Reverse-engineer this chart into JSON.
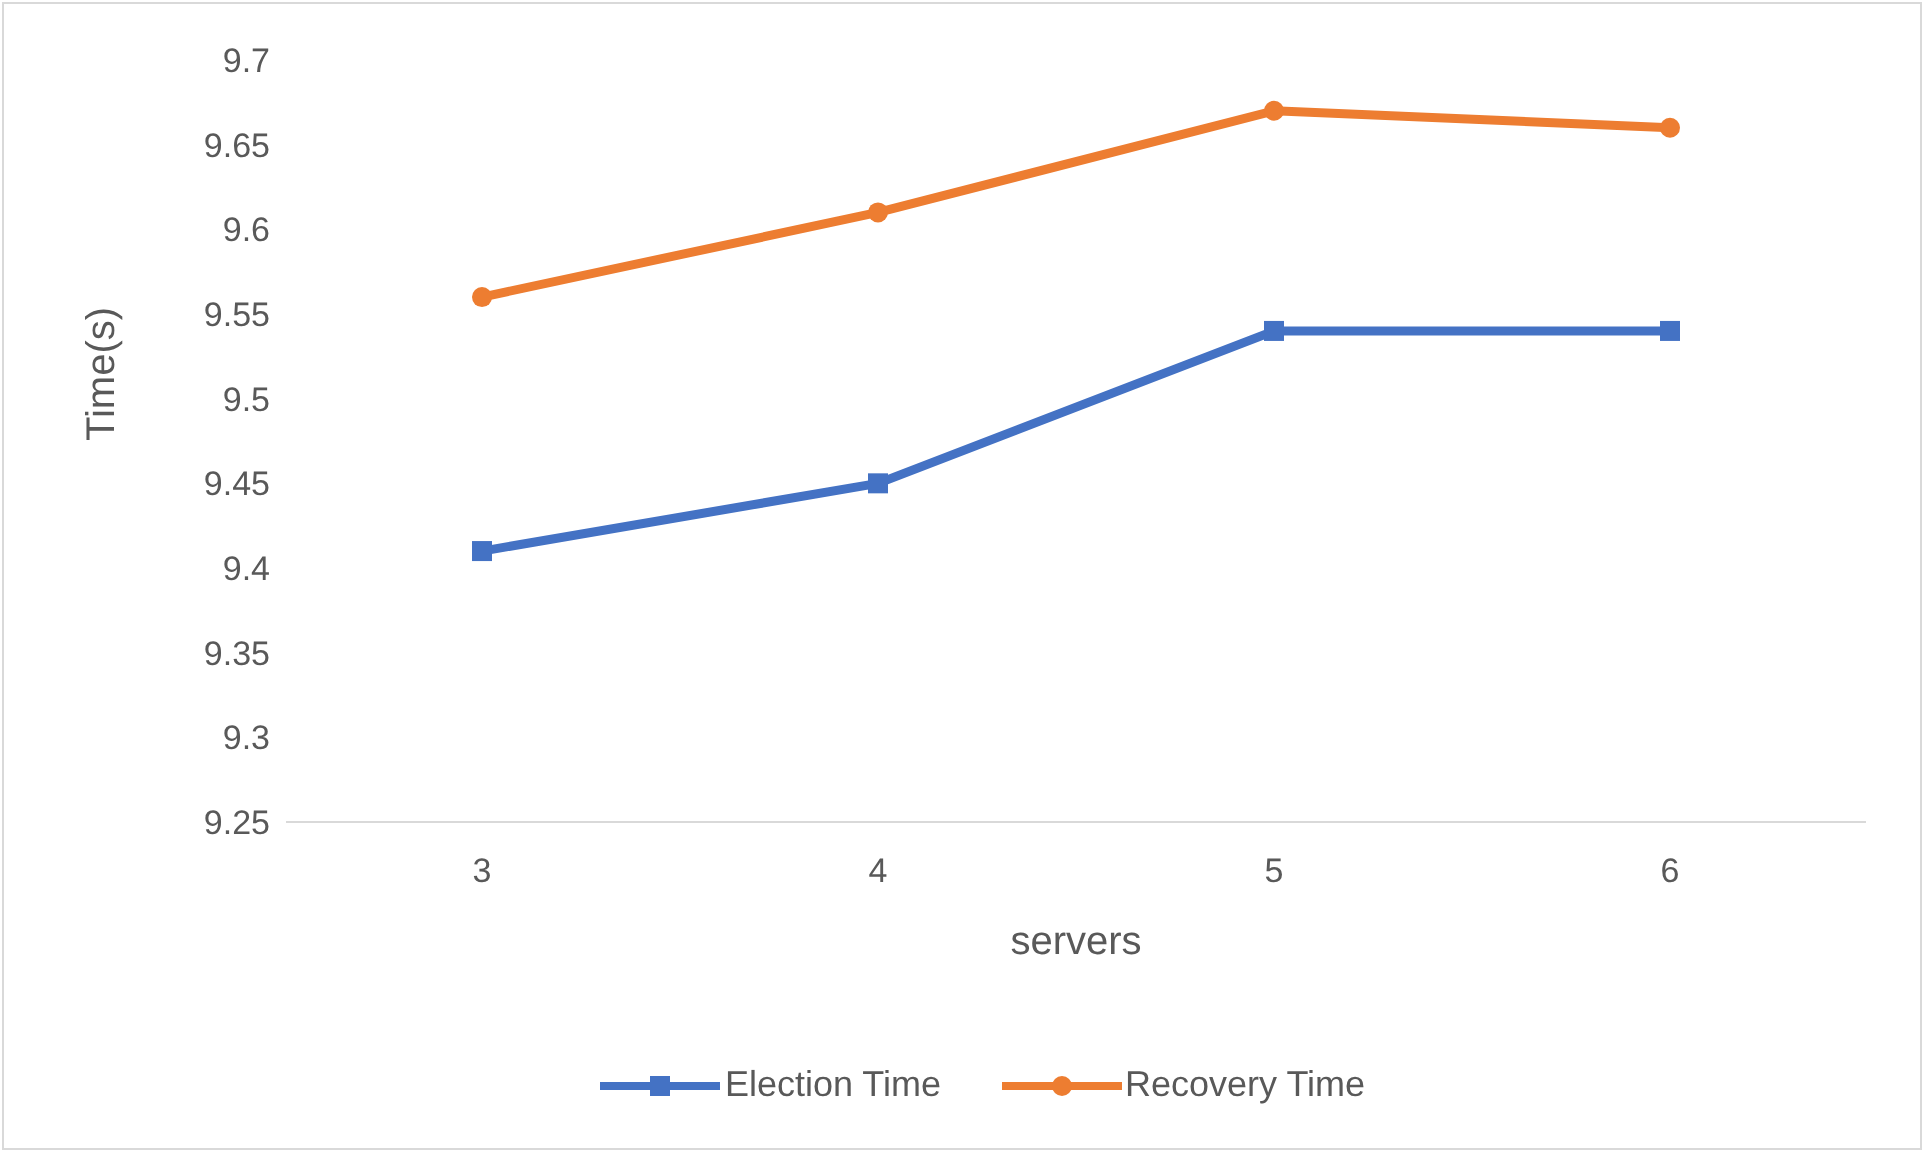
{
  "chart_data": {
    "type": "line",
    "xlabel": "servers",
    "ylabel": "Time(s)",
    "categories": [
      "3",
      "4",
      "5",
      "6"
    ],
    "series": [
      {
        "name": "Election Time",
        "color": "#4472c4",
        "marker": "square",
        "values": [
          9.41,
          9.45,
          9.54,
          9.54
        ]
      },
      {
        "name": "Recovery Time",
        "color": "#ed7d31",
        "marker": "circle",
        "values": [
          9.56,
          9.61,
          9.67,
          9.66
        ]
      }
    ],
    "ylim": [
      9.25,
      9.7
    ],
    "yticks": [
      9.25,
      9.3,
      9.35,
      9.4,
      9.45,
      9.5,
      9.55,
      9.6,
      9.65,
      9.7
    ],
    "grid": false,
    "legend": "bottom",
    "line_style": "solid"
  }
}
